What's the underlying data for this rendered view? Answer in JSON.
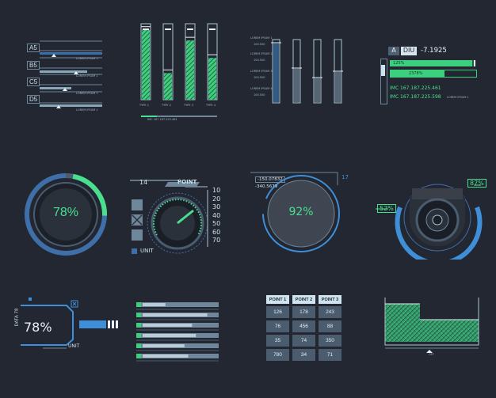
{
  "panel1": {
    "labels": [
      "A5",
      "B5",
      "C5",
      "D5"
    ],
    "caption": "LOREM IPSUM 1"
  },
  "panel2": {
    "types": [
      "TYPE 1",
      "TYPE 2",
      "TYPE 3",
      "TYPE 4"
    ],
    "levels": [
      0.92,
      0.35,
      0.78,
      0.55
    ],
    "footer": "IMC 167.187.225.461"
  },
  "panel3": {
    "labels": [
      "LOREM IPSUM 1",
      "LOREM IPSUM 2",
      "LOREM IPSUM 3",
      "LOREM IPSUM 4"
    ],
    "values": [
      "100.500",
      "100.500",
      "100.500",
      "100.500"
    ],
    "levels": [
      0.95,
      0.55,
      0.4,
      0.5
    ]
  },
  "panel4": {
    "tag_a": "A",
    "tag_b": "DIU",
    "value": "-7.1925",
    "bar1": "125%",
    "bar2": "2378%",
    "imc1": "IMC 167.187.225.461",
    "imc2": "IMC 167.187.225.598",
    "caption": "LOREM IPSUM 1"
  },
  "gauge1": {
    "percent": "78%",
    "level": 0.78
  },
  "gauge2": {
    "count": "14",
    "title": "POINT",
    "unit": "UNIT",
    "scale": [
      "10",
      "20",
      "30",
      "40",
      "50",
      "60",
      "70"
    ]
  },
  "gauge3": {
    "percent": "92%",
    "value1": "-150.07832",
    "value2": "-340.5679",
    "corner": "17"
  },
  "gauge4": {
    "left": "52%",
    "right": "87%"
  },
  "panel9": {
    "percent": "78%",
    "side": "DATA 78",
    "unit": "UNIT"
  },
  "panel10": {
    "rows": 6
  },
  "table": {
    "headers": [
      "POINT 1",
      "POINT 2",
      "POINT 3"
    ],
    "rows": [
      [
        "126",
        "178",
        "243"
      ],
      [
        "76",
        "456",
        "88"
      ],
      [
        "35",
        "74",
        "350"
      ],
      [
        "780",
        "34",
        "71"
      ]
    ]
  },
  "area": {
    "label": "OFF"
  }
}
